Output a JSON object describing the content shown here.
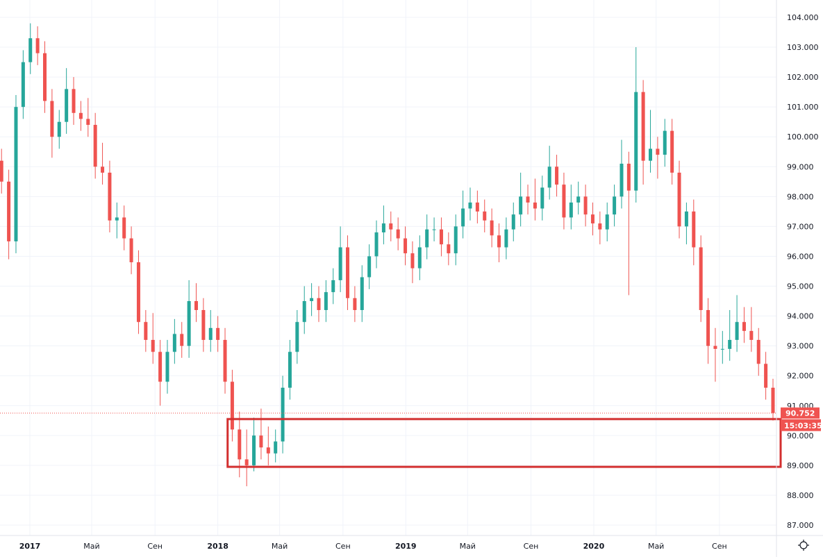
{
  "chart_data": {
    "type": "candlestick",
    "title": "",
    "xlabel": "",
    "ylabel": "",
    "x_start": "2016-11-07",
    "interval_days": 14,
    "ylim": [
      86.6,
      104.6
    ],
    "grid": true,
    "colors": {
      "up": "#26a69a",
      "down": "#ef5350",
      "box": "#d32f2f",
      "last_price": "#ef5350"
    },
    "yticks": [
      "104.000",
      "103.000",
      "102.000",
      "101.000",
      "100.000",
      "99.000",
      "98.000",
      "97.000",
      "96.000",
      "95.000",
      "94.000",
      "93.000",
      "92.000",
      "91.000",
      "90.000",
      "89.000",
      "88.000",
      "87.000"
    ],
    "xticks": [
      {
        "label": "2017",
        "date": "2017-01-01",
        "year": true
      },
      {
        "label": "Май",
        "date": "2017-05-01",
        "year": false
      },
      {
        "label": "Сен",
        "date": "2017-09-01",
        "year": false
      },
      {
        "label": "2018",
        "date": "2018-01-01",
        "year": true
      },
      {
        "label": "Май",
        "date": "2018-05-01",
        "year": false
      },
      {
        "label": "Сен",
        "date": "2018-09-01",
        "year": false
      },
      {
        "label": "2019",
        "date": "2019-01-01",
        "year": true
      },
      {
        "label": "Май",
        "date": "2019-05-01",
        "year": false
      },
      {
        "label": "Сен",
        "date": "2019-09-01",
        "year": false
      },
      {
        "label": "2020",
        "date": "2020-01-01",
        "year": true
      },
      {
        "label": "Май",
        "date": "2020-05-01",
        "year": false
      },
      {
        "label": "Сен",
        "date": "2020-09-01",
        "year": false
      }
    ],
    "ohlc": [
      [
        99.2,
        99.6,
        98.1,
        98.5
      ],
      [
        98.5,
        98.9,
        95.9,
        96.5
      ],
      [
        96.5,
        101.4,
        96.1,
        101
      ],
      [
        101,
        102.9,
        100.6,
        102.5
      ],
      [
        102.5,
        103.8,
        102.1,
        103.3
      ],
      [
        103.3,
        103.7,
        102.4,
        102.8
      ],
      [
        102.8,
        103.2,
        100.8,
        101.2
      ],
      [
        101.2,
        101.6,
        99.3,
        100
      ],
      [
        100,
        100.9,
        99.6,
        100.5
      ],
      [
        100.5,
        102.3,
        100.1,
        101.6
      ],
      [
        101.6,
        102,
        100.4,
        100.8
      ],
      [
        100.8,
        101.2,
        100.2,
        100.6
      ],
      [
        100.6,
        101.3,
        100,
        100.4
      ],
      [
        100.4,
        100.8,
        98.6,
        99
      ],
      [
        99,
        99.8,
        98.4,
        98.8
      ],
      [
        98.8,
        99.2,
        96.8,
        97.2
      ],
      [
        97.2,
        97.8,
        96.6,
        97.3
      ],
      [
        97.3,
        97.7,
        96.2,
        96.6
      ],
      [
        96.6,
        97,
        95.4,
        95.8
      ],
      [
        95.8,
        96.2,
        93.4,
        93.8
      ],
      [
        93.8,
        94.2,
        92.8,
        93.2
      ],
      [
        93.2,
        94.1,
        92.4,
        92.8
      ],
      [
        92.8,
        93.2,
        91.0,
        91.8
      ],
      [
        91.8,
        93.2,
        91.4,
        92.8
      ],
      [
        92.8,
        93.9,
        92.4,
        93.4
      ],
      [
        93.4,
        93.8,
        92.6,
        93
      ],
      [
        93,
        95.2,
        92.6,
        94.5
      ],
      [
        94.5,
        95.1,
        93.8,
        94.2
      ],
      [
        94.2,
        94.6,
        92.8,
        93.2
      ],
      [
        93.2,
        94.2,
        92.8,
        93.6
      ],
      [
        93.6,
        94,
        92.8,
        93.2
      ],
      [
        93.2,
        93.6,
        91.4,
        91.8
      ],
      [
        91.8,
        92.2,
        89.8,
        90.2
      ],
      [
        90.2,
        90.8,
        88.6,
        89.2
      ],
      [
        89.2,
        90.2,
        88.3,
        89
      ],
      [
        89,
        90.6,
        88.8,
        90
      ],
      [
        90,
        90.9,
        89.2,
        89.6
      ],
      [
        89.6,
        90.3,
        89,
        89.4
      ],
      [
        89.4,
        90.2,
        89.1,
        89.8
      ],
      [
        89.8,
        92,
        89.4,
        91.6
      ],
      [
        91.6,
        93.2,
        91.2,
        92.8
      ],
      [
        92.8,
        94.2,
        92.4,
        93.8
      ],
      [
        93.8,
        95,
        93.4,
        94.5
      ],
      [
        94.5,
        95.1,
        94,
        94.6
      ],
      [
        94.6,
        95,
        93.8,
        94.2
      ],
      [
        94.2,
        95.2,
        93.8,
        94.8
      ],
      [
        94.8,
        95.6,
        94.4,
        95.2
      ],
      [
        95.2,
        97,
        94.8,
        96.3
      ],
      [
        96.3,
        96.7,
        94.2,
        94.6
      ],
      [
        94.6,
        95,
        93.8,
        94.2
      ],
      [
        94.2,
        95.7,
        93.8,
        95.3
      ],
      [
        95.3,
        96.4,
        94.9,
        96
      ],
      [
        96,
        97.2,
        95.6,
        96.8
      ],
      [
        96.8,
        97.7,
        96.4,
        97.1
      ],
      [
        97.1,
        97.5,
        96.5,
        96.9
      ],
      [
        96.9,
        97.3,
        96.2,
        96.6
      ],
      [
        96.6,
        97,
        95.7,
        96.1
      ],
      [
        96.1,
        96.5,
        95.1,
        95.6
      ],
      [
        95.6,
        96.7,
        95.2,
        96.3
      ],
      [
        96.3,
        97.4,
        95.9,
        96.9
      ],
      [
        96.9,
        97.3,
        96.5,
        96.9
      ],
      [
        96.9,
        97.3,
        96,
        96.4
      ],
      [
        96.4,
        96.8,
        95.7,
        96.1
      ],
      [
        96.1,
        97.4,
        95.7,
        97
      ],
      [
        97,
        98.2,
        96.6,
        97.6
      ],
      [
        97.6,
        98.3,
        97.2,
        97.8
      ],
      [
        97.8,
        98.2,
        97.1,
        97.5
      ],
      [
        97.5,
        97.9,
        96.8,
        97.2
      ],
      [
        97.2,
        97.6,
        96.3,
        96.7
      ],
      [
        96.7,
        97.1,
        95.8,
        96.3
      ],
      [
        96.3,
        97.3,
        95.9,
        96.9
      ],
      [
        96.9,
        97.8,
        96.5,
        97.4
      ],
      [
        97.4,
        98.8,
        97,
        98
      ],
      [
        98,
        98.4,
        97.4,
        97.8
      ],
      [
        97.8,
        98.6,
        97.2,
        97.6
      ],
      [
        97.6,
        98.7,
        97.2,
        98.3
      ],
      [
        98.3,
        99.7,
        97.9,
        99
      ],
      [
        99,
        99.4,
        98,
        98.4
      ],
      [
        98.4,
        98.8,
        96.9,
        97.3
      ],
      [
        97.3,
        98.4,
        96.9,
        97.8
      ],
      [
        97.8,
        98.5,
        97.4,
        98
      ],
      [
        98,
        98.4,
        97,
        97.4
      ],
      [
        97.4,
        97.8,
        96.7,
        97.1
      ],
      [
        97.1,
        97.5,
        96.4,
        96.9
      ],
      [
        96.9,
        97.8,
        96.5,
        97.4
      ],
      [
        97.4,
        98.4,
        97,
        98
      ],
      [
        98,
        99.9,
        97.6,
        99.1
      ],
      [
        99.1,
        99.5,
        94.7,
        98.2
      ],
      [
        98.2,
        103,
        97.8,
        101.5
      ],
      [
        101.5,
        101.9,
        98.4,
        99.2
      ],
      [
        99.2,
        100.9,
        98.8,
        99.6
      ],
      [
        99.6,
        100,
        98.6,
        99.4
      ],
      [
        99.4,
        100.6,
        99,
        100.2
      ],
      [
        100.2,
        100.6,
        98.4,
        98.8
      ],
      [
        98.8,
        99.2,
        96.6,
        97
      ],
      [
        97,
        97.8,
        96.4,
        97.5
      ],
      [
        97.5,
        97.9,
        95.7,
        96.3
      ],
      [
        96.3,
        96.7,
        93.8,
        94.2
      ],
      [
        94.2,
        94.6,
        92.4,
        93
      ],
      [
        93,
        93.6,
        91.8,
        92.9
      ],
      [
        92.9,
        93.5,
        92.4,
        92.9
      ],
      [
        92.9,
        94.2,
        92.5,
        93.2
      ],
      [
        93.2,
        94.7,
        92.8,
        93.8
      ],
      [
        93.8,
        94.3,
        93.1,
        93.5
      ],
      [
        93.5,
        94.3,
        92.8,
        93.2
      ],
      [
        93.2,
        93.6,
        92,
        92.4
      ],
      [
        92.4,
        92.8,
        91.2,
        91.6
      ],
      [
        91.6,
        91.9,
        90.5,
        90.752
      ]
    ],
    "annotation_box": {
      "date_from": "2018-01-20",
      "price_top": 90.55,
      "price_bottom": 88.95
    },
    "last_price": "90.752",
    "countdown": "15:03:35"
  }
}
